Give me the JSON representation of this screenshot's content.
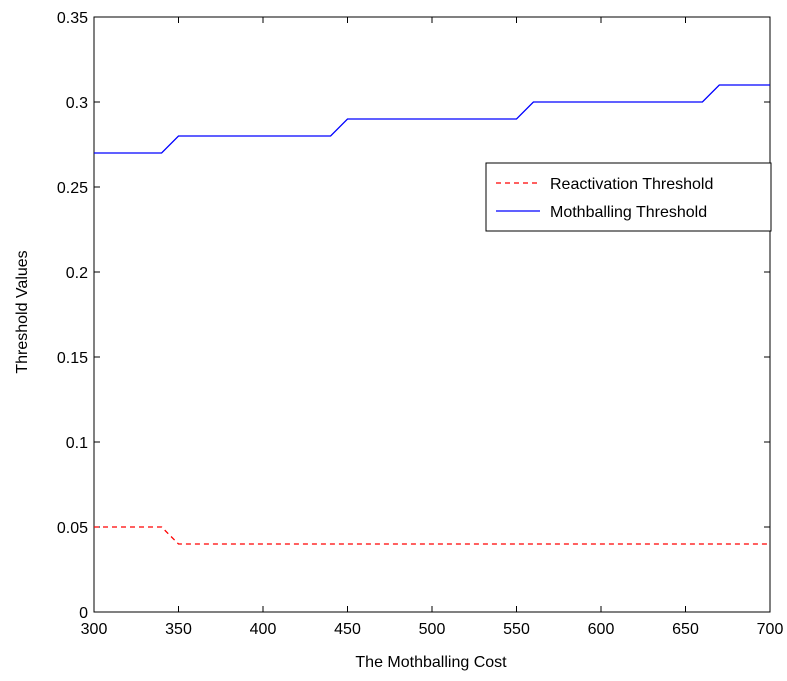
{
  "chart_data": {
    "type": "line",
    "xlabel": "The Mothballing Cost",
    "ylabel": "Threshold Values",
    "xlim": [
      300,
      700
    ],
    "ylim": [
      0,
      0.35
    ],
    "xticks": [
      300,
      350,
      400,
      450,
      500,
      550,
      600,
      650,
      700
    ],
    "yticks": [
      0,
      0.05,
      0.1,
      0.15,
      0.2,
      0.25,
      0.3,
      0.35
    ],
    "xtick_labels": [
      "300",
      "350",
      "400",
      "450",
      "500",
      "550",
      "600",
      "650",
      "700"
    ],
    "ytick_labels": [
      "0",
      "0.05",
      "0.1",
      "0.15",
      "0.2",
      "0.25",
      "0.3",
      "0.35"
    ],
    "grid": false,
    "legend": {
      "position": "top-right",
      "entries": [
        "Reactivation Threshold",
        "Mothballing Threshold"
      ]
    },
    "series": [
      {
        "name": "Reactivation Threshold",
        "color": "#ff0000",
        "style": "dashed",
        "x": [
          300,
          340,
          350,
          700
        ],
        "y": [
          0.05,
          0.05,
          0.04,
          0.04
        ]
      },
      {
        "name": "Mothballing Threshold",
        "color": "#0000ff",
        "style": "solid",
        "x": [
          300,
          340,
          350,
          440,
          450,
          550,
          560,
          660,
          670,
          700
        ],
        "y": [
          0.27,
          0.27,
          0.28,
          0.28,
          0.29,
          0.29,
          0.3,
          0.3,
          0.31,
          0.31
        ]
      }
    ]
  }
}
